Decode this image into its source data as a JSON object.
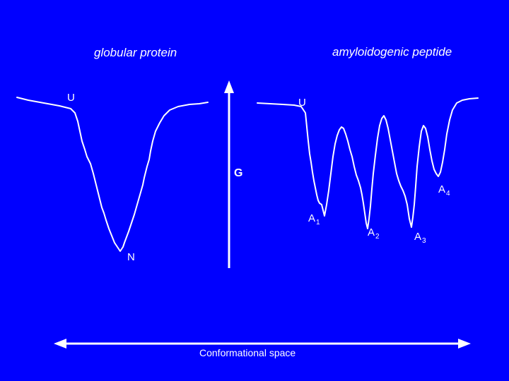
{
  "titles": {
    "left": "globular protein",
    "right": "amyloidogenic peptide"
  },
  "states": {
    "left_unfolded": "U",
    "native": "N",
    "right_unfolded": "U",
    "a1_letter": "A",
    "a1_index": "1",
    "a2_letter": "A",
    "a2_index": "2",
    "a3_letter": "A",
    "a3_index": "3",
    "a4_letter": "A",
    "a4_index": "4"
  },
  "axes": {
    "energy_label": "G",
    "x_label": "Conformational space"
  },
  "colors": {
    "background": "#0000FF",
    "foreground": "#FFFFFF"
  }
}
